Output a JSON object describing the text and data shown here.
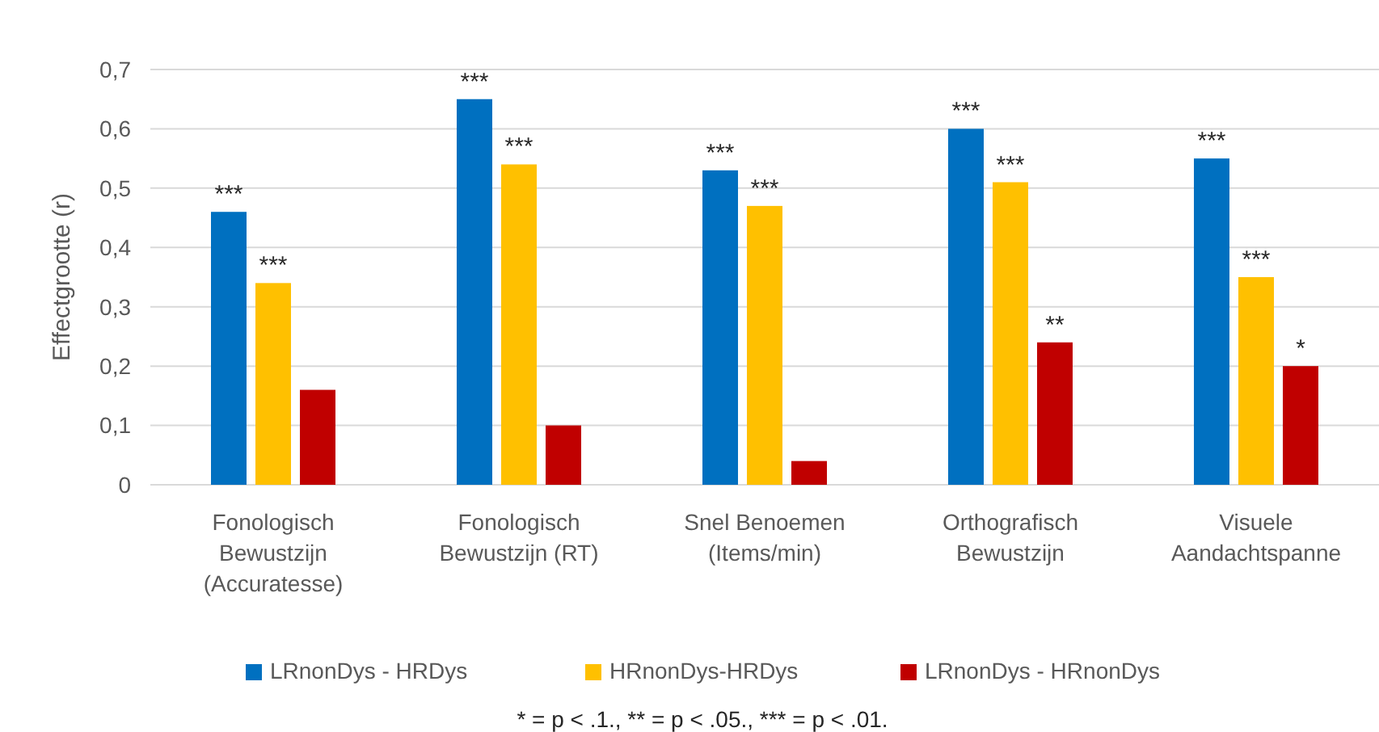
{
  "chart_data": {
    "type": "bar",
    "ylabel": "Effectgrootte (r)",
    "categories": [
      "Fonologisch Bewustzijn (Accuratesse)",
      "Fonologisch Bewustzijn (RT)",
      "Snel Benoemen (Items/min)",
      "Orthografisch Bewustzijn",
      "Visuele Aandachtspanne"
    ],
    "series": [
      {
        "name": "LRnonDys - HRDys",
        "color": "#0070c0",
        "values": [
          0.46,
          0.65,
          0.53,
          0.6,
          0.55
        ],
        "value_labels": [
          "***",
          "***",
          "***",
          "***",
          "***"
        ]
      },
      {
        "name": "HRnonDys-HRDys",
        "color": "#ffc000",
        "values": [
          0.34,
          0.54,
          0.47,
          0.51,
          0.35
        ],
        "value_labels": [
          "***",
          "***",
          "***",
          "***",
          "***"
        ]
      },
      {
        "name": "LRnonDys - HRnonDys",
        "color": "#c00000",
        "values": [
          0.16,
          0.1,
          0.04,
          0.24,
          0.2
        ],
        "value_labels": [
          null,
          null,
          null,
          "**",
          "*"
        ]
      }
    ],
    "ylim": [
      0,
      0.7
    ],
    "yticks": [
      {
        "value": 0,
        "label": "0"
      },
      {
        "value": 0.1,
        "label": "0,1"
      },
      {
        "value": 0.2,
        "label": "0,2"
      },
      {
        "value": 0.3,
        "label": "0,3"
      },
      {
        "value": 0.4,
        "label": "0,4"
      },
      {
        "value": 0.5,
        "label": "0,5"
      },
      {
        "value": 0.6,
        "label": "0,6"
      },
      {
        "value": 0.7,
        "label": "0,7"
      }
    ],
    "grid": "y",
    "legend": "bottom",
    "annotations": [
      "* =  p < .1., ** = p < .05., *** = p < .01."
    ]
  }
}
